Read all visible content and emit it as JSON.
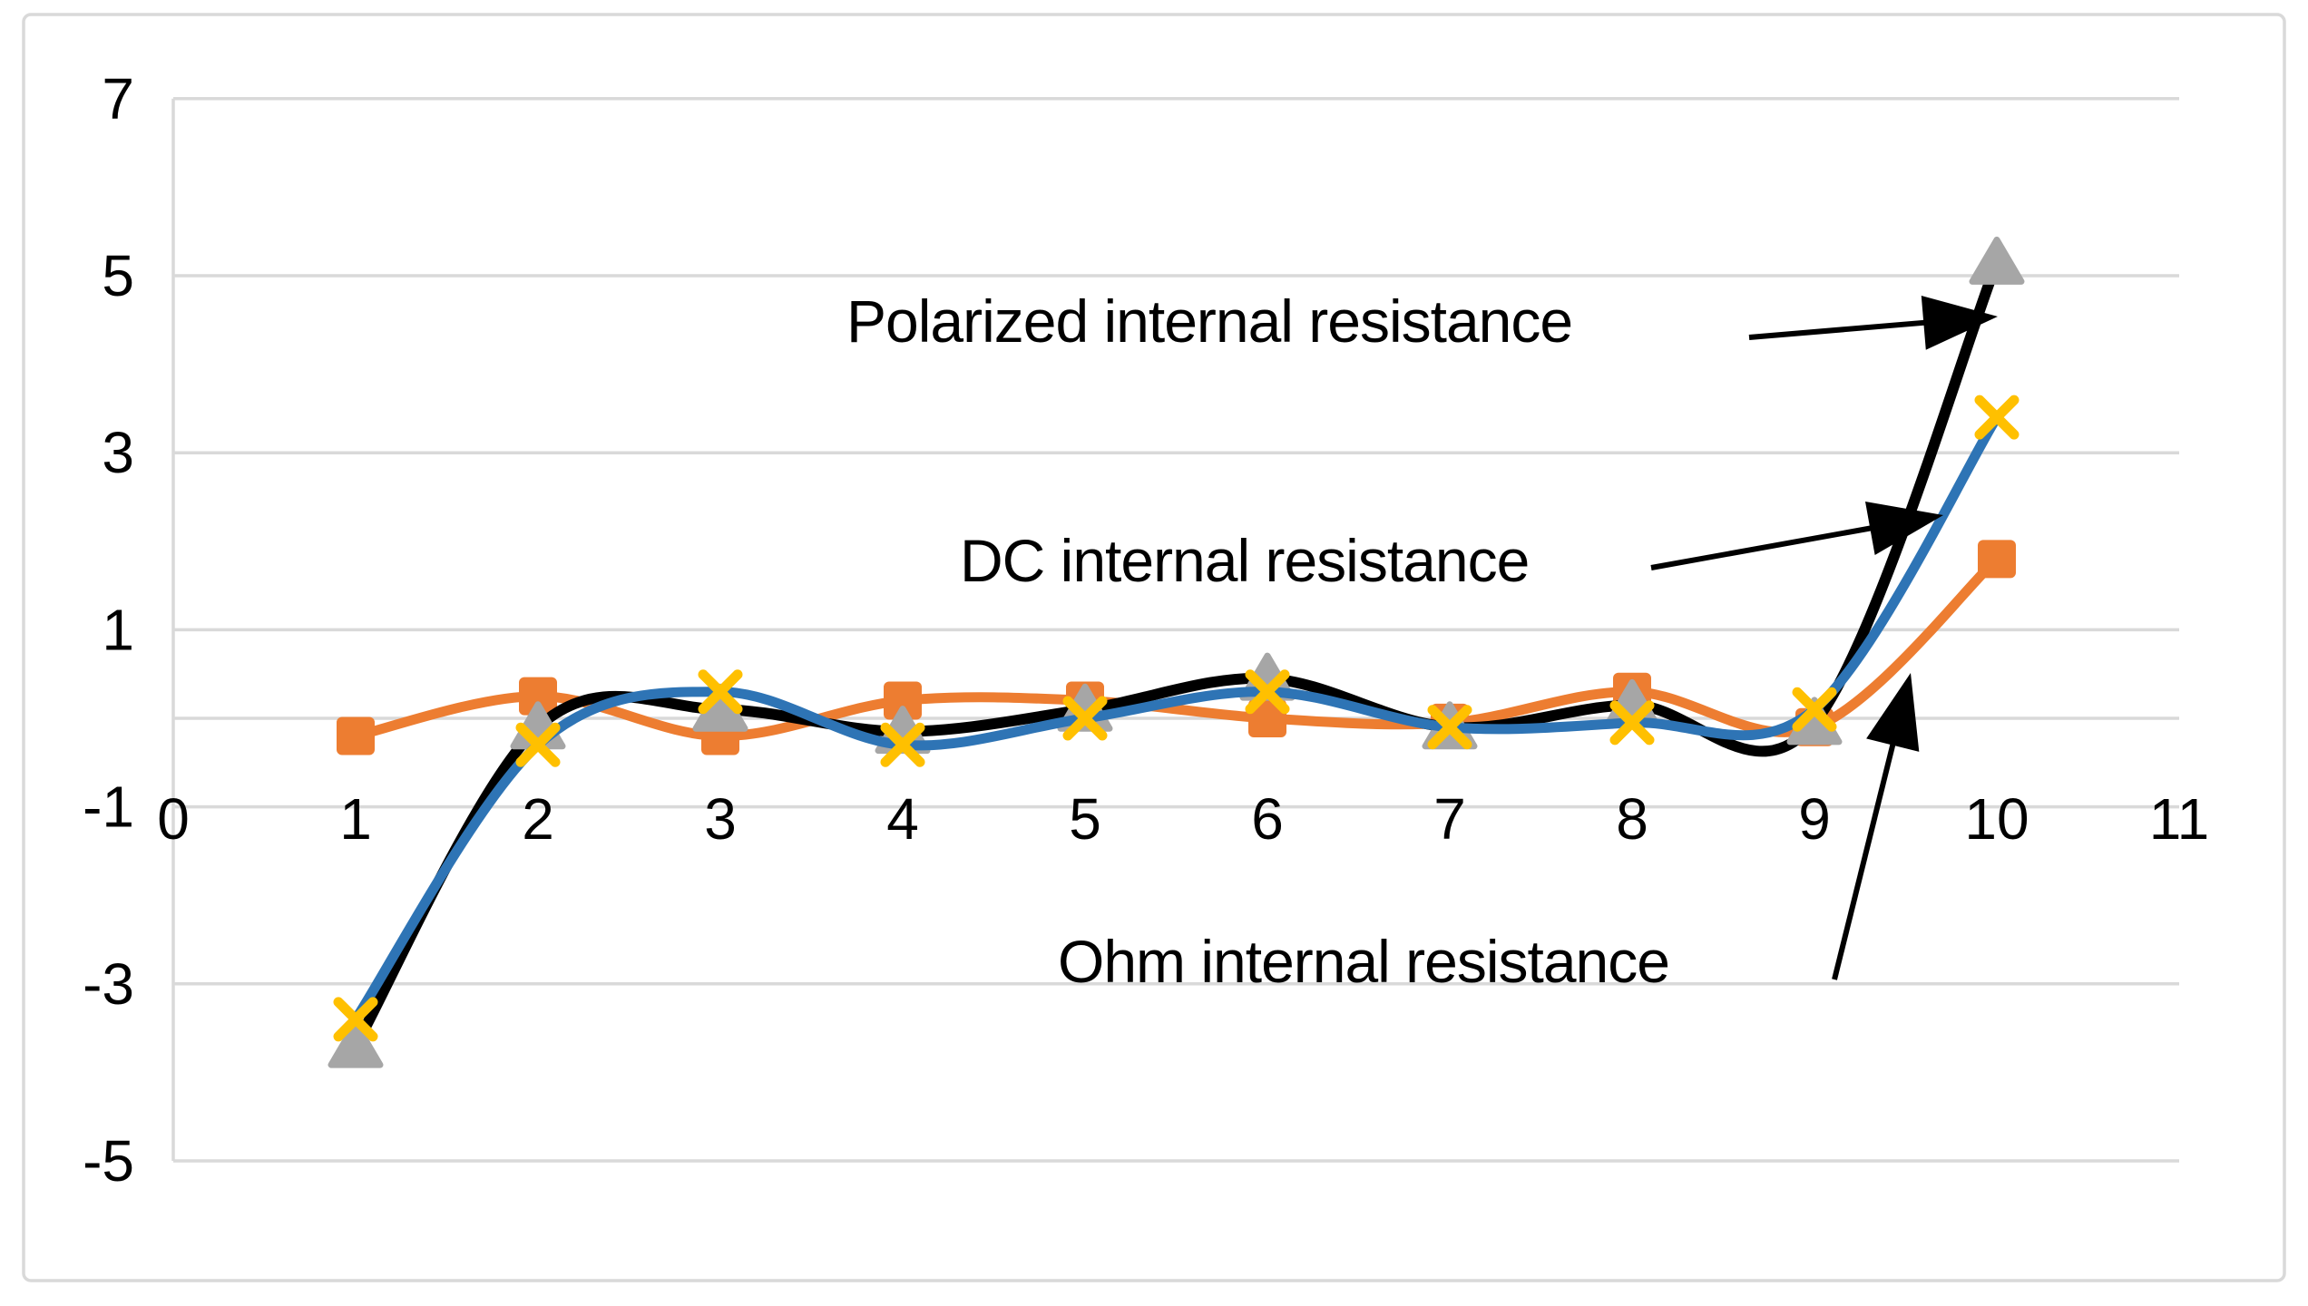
{
  "chart_data": {
    "type": "line",
    "subtype": "smoothed-line-with-markers",
    "title": "",
    "xlabel": "",
    "ylabel": "",
    "x": [
      1,
      2,
      3,
      4,
      5,
      6,
      7,
      8,
      9,
      10
    ],
    "series": [
      {
        "name": "Polarized internal resistance",
        "line_color": "#000000",
        "marker": "triangle",
        "marker_color": "#A6A6A6",
        "values": [
          -3.7,
          -0.1,
          0.1,
          -0.15,
          0.1,
          0.45,
          -0.1,
          0.15,
          -0.05,
          5.15
        ]
      },
      {
        "name": "DC internal resistance",
        "line_color": "#2E74B5",
        "marker": "x",
        "marker_color": "#FFC000",
        "values": [
          -3.4,
          -0.3,
          0.3,
          -0.3,
          0.0,
          0.3,
          -0.1,
          -0.05,
          0.1,
          3.4
        ]
      },
      {
        "name": "Ohm internal resistance",
        "line_color": "#ED7D31",
        "marker": "square",
        "marker_color": "#ED7D31",
        "values": [
          -0.2,
          0.25,
          -0.2,
          0.2,
          0.2,
          0.0,
          -0.05,
          0.3,
          -0.1,
          1.8
        ]
      }
    ],
    "xlim": [
      0,
      11
    ],
    "ylim": [
      -5,
      7
    ],
    "x_tick_labels": [
      "0",
      "1",
      "2",
      "3",
      "4",
      "5",
      "6",
      "7",
      "8",
      "9",
      "10",
      "11"
    ],
    "x_tick_values": [
      0,
      1,
      2,
      3,
      4,
      5,
      6,
      7,
      8,
      9,
      10,
      11
    ],
    "y_tick_labels": [
      "7",
      "5",
      "3",
      "1",
      "-1",
      "-3",
      "-5"
    ],
    "y_tick_values": [
      7,
      5,
      3,
      1,
      -1,
      -3,
      -5
    ],
    "zero_axis_line": true,
    "grid": true,
    "legend_position": "none"
  },
  "annotations": [
    {
      "text": "Polarized internal resistance",
      "points_to": "Polarized internal resistance"
    },
    {
      "text": "DC internal resistance",
      "points_to": "DC internal resistance"
    },
    {
      "text": "Ohm internal resistance",
      "points_to": "Ohm internal resistance"
    }
  ],
  "colors": {
    "gridline": "#D9D9D9",
    "chart_border": "#D9D9D9",
    "axis_text": "#000000",
    "annotation_text": "#000000",
    "arrow": "#000000",
    "background": "#FFFFFF",
    "series_polarized_line": "#000000",
    "series_polarized_marker": "#A6A6A6",
    "series_dc_line": "#2E74B5",
    "series_dc_marker": "#FFC000",
    "series_ohm": "#ED7D31"
  }
}
